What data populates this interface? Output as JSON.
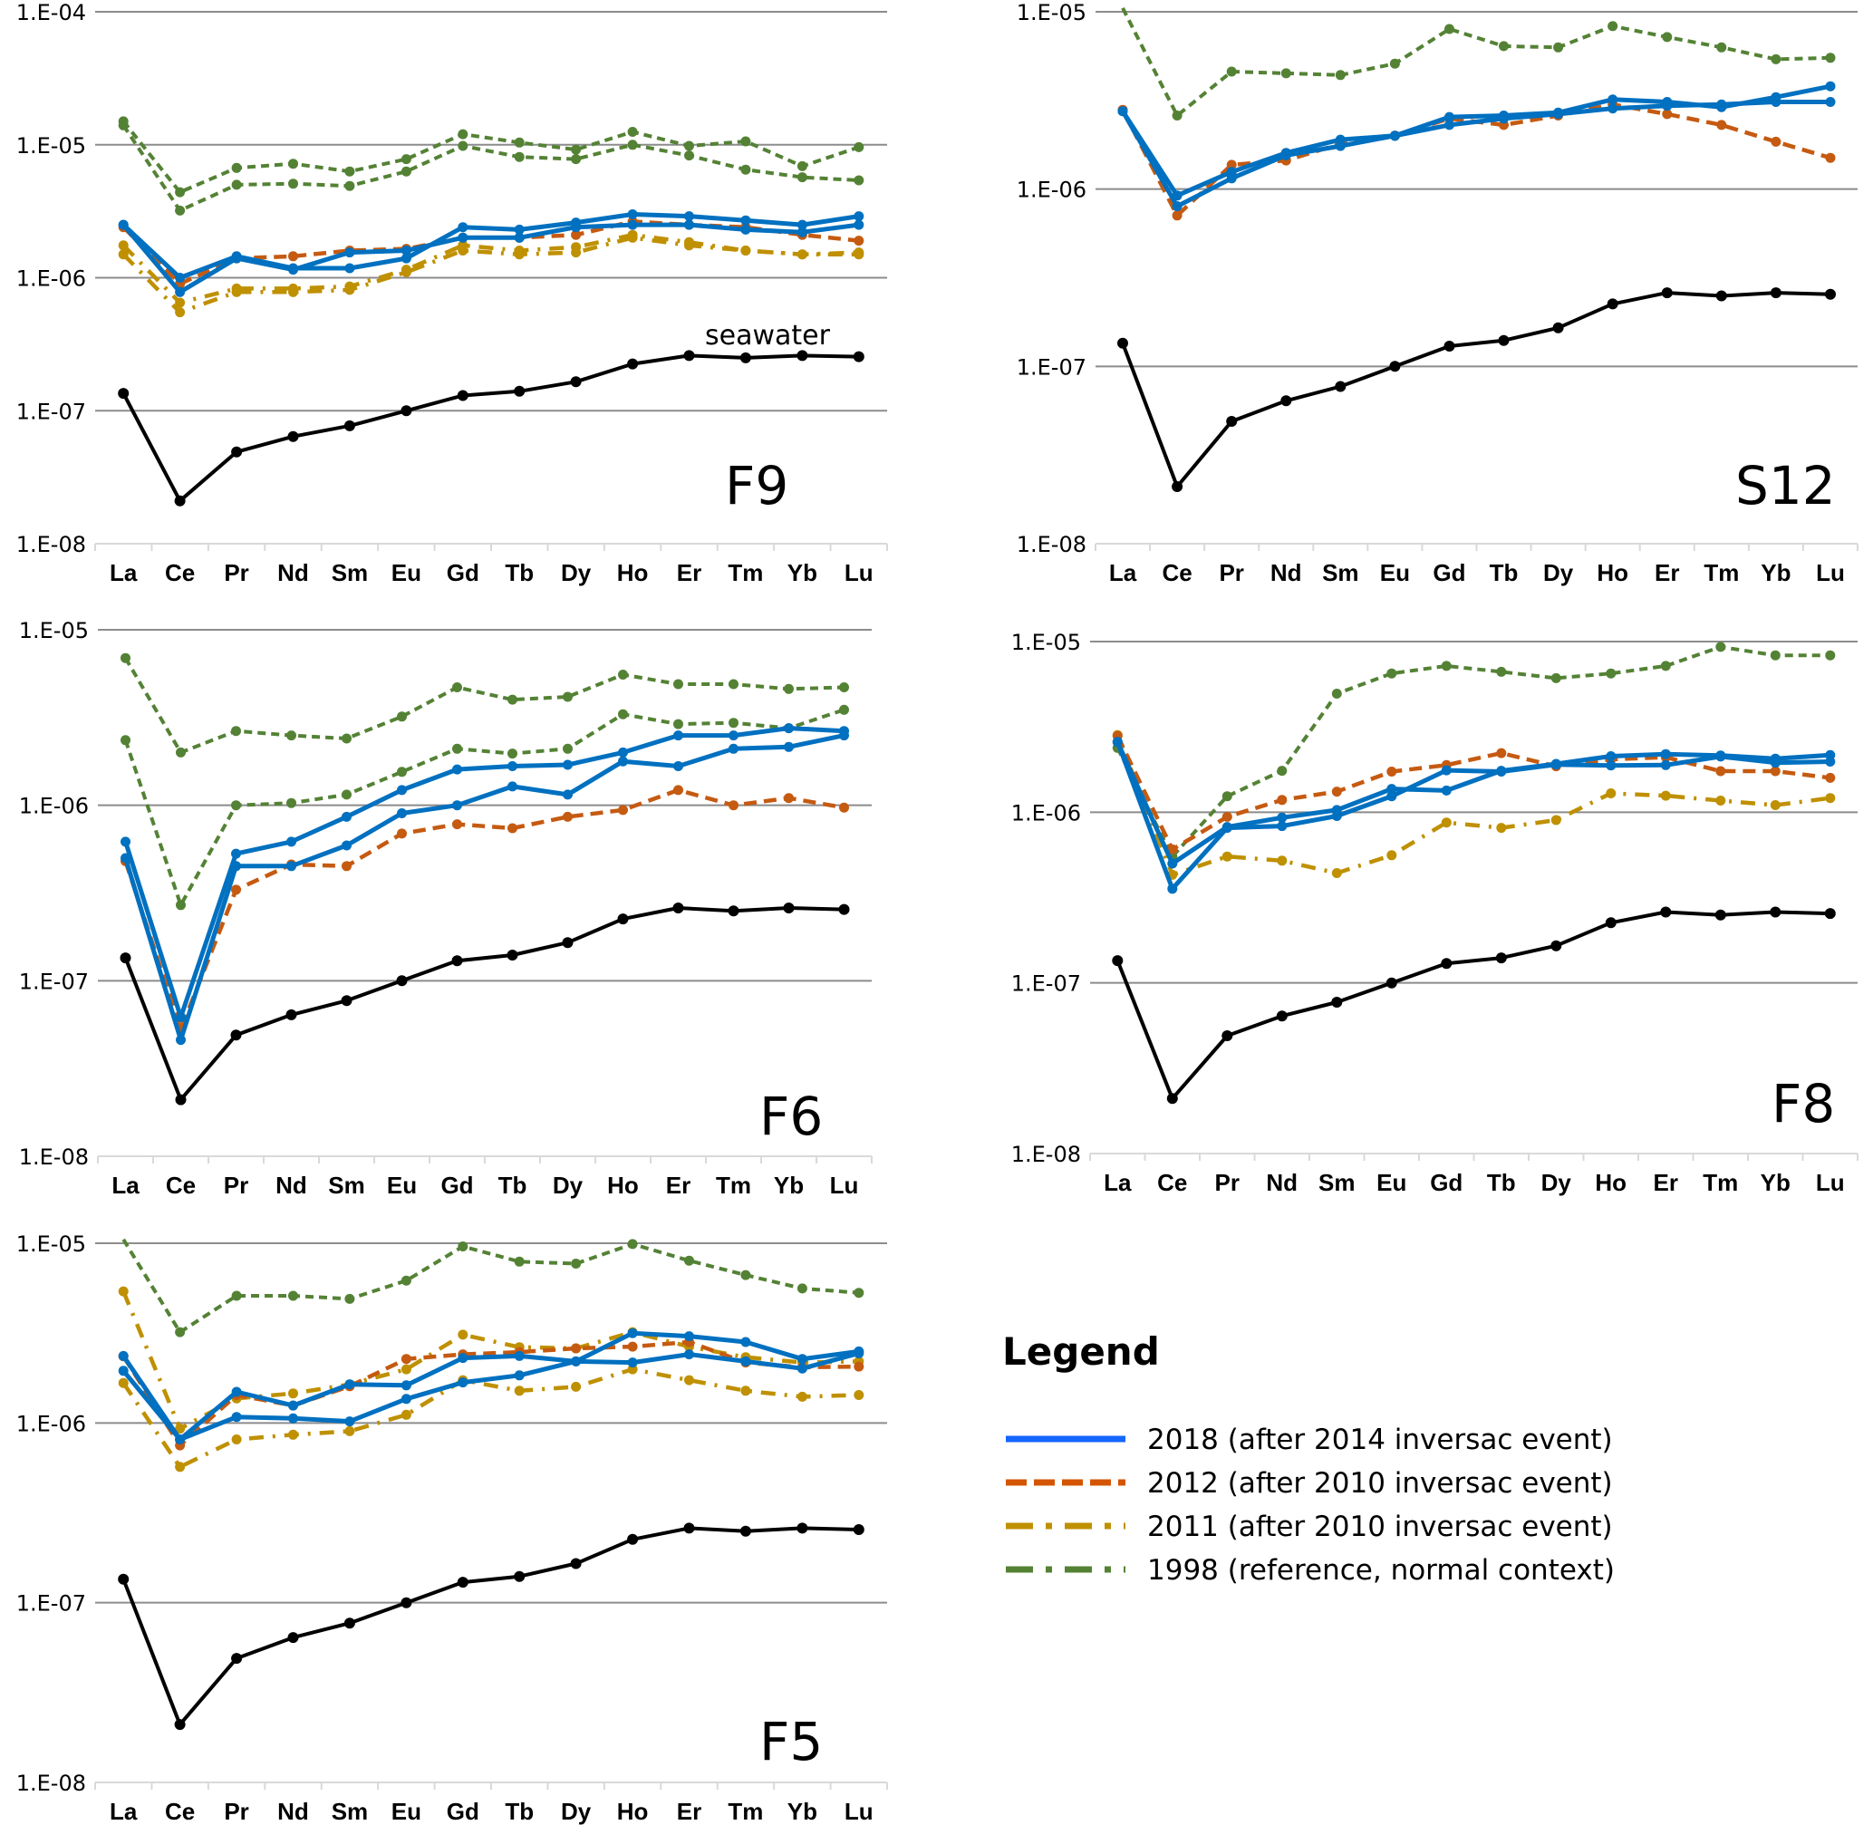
{
  "chart_data": {
    "type": "line",
    "yscale": "log",
    "categories": [
      "La",
      "Ce",
      "Pr",
      "Nd",
      "Sm",
      "Eu",
      "Gd",
      "Tb",
      "Dy",
      "Ho",
      "Er",
      "Tm",
      "Yb",
      "Lu"
    ],
    "series_styles": {
      "2018": {
        "color": "#0070c0",
        "dash": "solid"
      },
      "2012": {
        "color": "#c55a11",
        "dash": "dashed"
      },
      "2011": {
        "color": "#bf9000",
        "dash": "dash-dot"
      },
      "1998": {
        "color": "#548235",
        "dash": "short-dash"
      },
      "seawater": {
        "color": "#000000",
        "dash": "solid"
      }
    },
    "seawater": [
      1.35e-07,
      2.1e-08,
      4.9e-08,
      6.4e-08,
      7.7e-08,
      1e-07,
      1.3e-07,
      1.4e-07,
      1.65e-07,
      2.25e-07,
      2.6e-07,
      2.5e-07,
      2.6e-07,
      2.55e-07
    ],
    "panels": [
      {
        "id": "F9",
        "label": "F9",
        "annotation": "seawater",
        "yticks": [
          "1.E-04",
          "1.E-05",
          "1.E-06",
          "1.E-07",
          "1.E-08"
        ],
        "ylim": [
          1e-08,
          0.0001
        ],
        "series": [
          {
            "group": "1998",
            "values": [
              1.5e-05,
              4.4e-06,
              6.7e-06,
              7.2e-06,
              6.3e-06,
              7.8e-06,
              1.2e-05,
              1.04e-05,
              9.2e-06,
              1.25e-05,
              9.8e-06,
              1.06e-05,
              6.9e-06,
              9.6e-06
            ]
          },
          {
            "group": "1998",
            "values": [
              1.4e-05,
              3.2e-06,
              5e-06,
              5.1e-06,
              4.9e-06,
              6.3e-06,
              9.8e-06,
              8.1e-06,
              7.8e-06,
              1e-05,
              8.3e-06,
              6.5e-06,
              5.7e-06,
              5.4e-06
            ]
          },
          {
            "group": "2011",
            "values": [
              1.75e-06,
              6.5e-07,
              8.3e-07,
              8.3e-07,
              8.6e-07,
              1.15e-06,
              1.75e-06,
              1.6e-06,
              1.7e-06,
              2.1e-06,
              1.85e-06,
              1.6e-06,
              1.5e-06,
              1.55e-06
            ]
          },
          {
            "group": "2011",
            "values": [
              1.5e-06,
              5.5e-07,
              7.8e-07,
              7.8e-07,
              8.1e-07,
              1.1e-06,
              1.6e-06,
              1.5e-06,
              1.55e-06,
              2e-06,
              1.75e-06,
              1.6e-06,
              1.5e-06,
              1.5e-06
            ]
          },
          {
            "group": "2012",
            "values": [
              2.4e-06,
              9e-07,
              1.4e-06,
              1.45e-06,
              1.6e-06,
              1.65e-06,
              2e-06,
              2e-06,
              2.1e-06,
              2.65e-06,
              2.5e-06,
              2.4e-06,
              2.1e-06,
              1.9e-06
            ]
          },
          {
            "group": "2018",
            "values": [
              2.5e-06,
              1e-06,
              1.45e-06,
              1.18e-06,
              1.18e-06,
              1.4e-06,
              2.4e-06,
              2.3e-06,
              2.6e-06,
              3e-06,
              2.9e-06,
              2.7e-06,
              2.5e-06,
              2.9e-06
            ]
          },
          {
            "group": "2018",
            "values": [
              2.5e-06,
              7.8e-07,
              1.4e-06,
              1.15e-06,
              1.55e-06,
              1.6e-06,
              2e-06,
              2e-06,
              2.4e-06,
              2.5e-06,
              2.5e-06,
              2.3e-06,
              2.2e-06,
              2.5e-06
            ]
          },
          {
            "group": "seawater",
            "values": "seawater"
          }
        ]
      },
      {
        "id": "S12",
        "label": "S12",
        "yticks": [
          "1.E-05",
          "1.E-06",
          "1.E-07",
          "1.E-08"
        ],
        "ylim": [
          1e-08,
          1e-05
        ],
        "series": [
          {
            "group": "1998",
            "values": [
              1.05e-05,
              2.6e-06,
              4.6e-06,
              4.5e-06,
              4.4e-06,
              5.1e-06,
              8e-06,
              6.4e-06,
              6.3e-06,
              8.3e-06,
              7.2e-06,
              6.3e-06,
              5.4e-06,
              5.5e-06
            ]
          },
          {
            "group": "2012",
            "values": [
              2.8e-06,
              7.1e-07,
              1.37e-06,
              1.45e-06,
              1.8e-06,
              2e-06,
              2.5e-06,
              2.3e-06,
              2.6e-06,
              3e-06,
              2.65e-06,
              2.3e-06,
              1.85e-06,
              1.5e-06
            ]
          },
          {
            "group": "2018",
            "values": [
              2.75e-06,
              9.2e-07,
              1.25e-06,
              1.6e-06,
              1.9e-06,
              2e-06,
              2.55e-06,
              2.6e-06,
              2.7e-06,
              3.2e-06,
              3.1e-06,
              2.9e-06,
              3.3e-06,
              3.8e-06
            ]
          },
          {
            "group": "2018",
            "values": [
              2.75e-06,
              8e-07,
              1.15e-06,
              1.55e-06,
              1.75e-06,
              2e-06,
              2.3e-06,
              2.5e-06,
              2.65e-06,
              2.85e-06,
              2.95e-06,
              3e-06,
              3.1e-06,
              3.1e-06
            ]
          },
          {
            "group": "seawater",
            "values": "seawater"
          }
        ]
      },
      {
        "id": "F6",
        "label": "F6",
        "yticks": [
          "1.E-05",
          "1.E-06",
          "1.E-07",
          "1.E-08"
        ],
        "ylim": [
          1e-08,
          1e-05
        ],
        "series": [
          {
            "group": "1998",
            "values": [
              6.9e-06,
              2e-06,
              2.65e-06,
              2.5e-06,
              2.4e-06,
              3.2e-06,
              4.7e-06,
              4e-06,
              4.15e-06,
              5.55e-06,
              4.9e-06,
              4.9e-06,
              4.6e-06,
              4.7e-06
            ]
          },
          {
            "group": "1998",
            "values": [
              2.35e-06,
              2.7e-07,
              1e-06,
              1.03e-06,
              1.15e-06,
              1.55e-06,
              2.1e-06,
              1.97e-06,
              2.1e-06,
              3.3e-06,
              2.9e-06,
              2.95e-06,
              2.75e-06,
              3.5e-06
            ]
          },
          {
            "group": "2012",
            "values": [
              4.8e-07,
              5.3e-08,
              3.3e-07,
              4.6e-07,
              4.5e-07,
              6.9e-07,
              7.8e-07,
              7.4e-07,
              8.6e-07,
              9.4e-07,
              1.22e-06,
              1e-06,
              1.1e-06,
              9.7e-07
            ]
          },
          {
            "group": "2018",
            "values": [
              6.2e-07,
              6.2e-08,
              5.3e-07,
              6.2e-07,
              8.6e-07,
              1.22e-06,
              1.6e-06,
              1.67e-06,
              1.7e-06,
              2e-06,
              2.5e-06,
              2.5e-06,
              2.75e-06,
              2.65e-06
            ]
          },
          {
            "group": "2018",
            "values": [
              5e-07,
              4.6e-08,
              4.5e-07,
              4.5e-07,
              5.9e-07,
              9e-07,
              1e-06,
              1.28e-06,
              1.15e-06,
              1.78e-06,
              1.67e-06,
              2.1e-06,
              2.15e-06,
              2.5e-06
            ]
          },
          {
            "group": "seawater",
            "values": "seawater"
          }
        ]
      },
      {
        "id": "F8",
        "label": "F8",
        "yticks": [
          "1.E-05",
          "1.E-06",
          "1.E-07",
          "1.E-08"
        ],
        "ylim": [
          1e-08,
          1e-05
        ],
        "series": [
          {
            "group": "1998",
            "values": [
              2.38e-06,
              5.5e-07,
              1.24e-06,
              1.75e-06,
              4.95e-06,
              6.5e-06,
              7.2e-06,
              6.65e-06,
              6.1e-06,
              6.5e-06,
              7.2e-06,
              9.3e-06,
              8.3e-06,
              8.3e-06
            ]
          },
          {
            "group": "2011",
            "values": [
              2.83e-06,
              4.3e-07,
              5.5e-07,
              5.2e-07,
              4.4e-07,
              5.6e-07,
              8.7e-07,
              8.1e-07,
              9e-07,
              1.29e-06,
              1.25e-06,
              1.17e-06,
              1.1e-06,
              1.21e-06
            ]
          },
          {
            "group": "2012",
            "values": [
              2.8e-06,
              6.05e-07,
              9.4e-07,
              1.18e-06,
              1.32e-06,
              1.73e-06,
              1.89e-06,
              2.22e-06,
              1.86e-06,
              2.04e-06,
              2.1e-06,
              1.74e-06,
              1.74e-06,
              1.59e-06
            ]
          },
          {
            "group": "2018",
            "values": [
              2.58e-06,
              5e-07,
              8.2e-07,
              9.3e-07,
              1.03e-06,
              1.37e-06,
              1.34e-06,
              1.75e-06,
              1.92e-06,
              2.13e-06,
              2.19e-06,
              2.15e-06,
              2.06e-06,
              2.16e-06
            ]
          },
          {
            "group": "2018",
            "values": [
              2.58e-06,
              3.56e-07,
              8.1e-07,
              8.3e-07,
              9.5e-07,
              1.24e-06,
              1.76e-06,
              1.73e-06,
              1.9e-06,
              1.88e-06,
              1.89e-06,
              2.12e-06,
              1.95e-06,
              1.98e-06
            ]
          },
          {
            "group": "seawater",
            "values": "seawater"
          }
        ]
      },
      {
        "id": "F5",
        "label": "F5",
        "yticks": [
          "1.E-05",
          "1.E-06",
          "1.E-07",
          "1.E-08"
        ],
        "ylim": [
          1e-08,
          1e-05
        ],
        "series": [
          {
            "group": "1998",
            "values": [
              1.05e-05,
              3.2e-06,
              5.1e-06,
              5.1e-06,
              4.9e-06,
              6.2e-06,
              9.6e-06,
              7.9e-06,
              7.7e-06,
              9.9e-06,
              8e-06,
              6.65e-06,
              5.6e-06,
              5.3e-06
            ]
          },
          {
            "group": "2011",
            "values": [
              5.4e-06,
              9.3e-07,
              1.37e-06,
              1.46e-06,
              1.64e-06,
              1.99e-06,
              3.1e-06,
              2.64e-06,
              2.6e-06,
              3.2e-06,
              2.66e-06,
              2.32e-06,
              2.17e-06,
              2.2e-06
            ]
          },
          {
            "group": "2011",
            "values": [
              1.67e-06,
              5.7e-07,
              8.1e-07,
              8.6e-07,
              9e-07,
              1.11e-06,
              1.73e-06,
              1.51e-06,
              1.59e-06,
              1.99e-06,
              1.73e-06,
              1.51e-06,
              1.4e-06,
              1.43e-06
            ]
          },
          {
            "group": "2012",
            "values": [
              2.35e-06,
              7.5e-07,
              1.43e-06,
              1.25e-06,
              1.6e-06,
              2.27e-06,
              2.41e-06,
              2.48e-06,
              2.6e-06,
              2.66e-06,
              2.82e-06,
              2.17e-06,
              2.04e-06,
              2.06e-06
            ]
          },
          {
            "group": "2018",
            "values": [
              2.36e-06,
              8.1e-07,
              1.49e-06,
              1.25e-06,
              1.64e-06,
              1.62e-06,
              2.3e-06,
              2.36e-06,
              2.2e-06,
              3.16e-06,
              3.04e-06,
              2.82e-06,
              2.27e-06,
              2.5e-06
            ]
          },
          {
            "group": "2018",
            "values": [
              1.95e-06,
              8.1e-07,
              1.08e-06,
              1.06e-06,
              1.02e-06,
              1.36e-06,
              1.68e-06,
              1.84e-06,
              2.2e-06,
              2.17e-06,
              2.41e-06,
              2.2e-06,
              2.01e-06,
              2.44e-06
            ]
          },
          {
            "group": "seawater",
            "values": "seawater"
          }
        ]
      }
    ],
    "legend": {
      "title": "Legend",
      "placement": "bottom-right",
      "items": [
        {
          "group": "2018",
          "label": "2018 (after 2014 inversac event)"
        },
        {
          "group": "2012",
          "label": "2012 (after 2010 inversac event)"
        },
        {
          "group": "2011",
          "label": "2011 (after 2010 inversac event)"
        },
        {
          "group": "1998",
          "label": "1998 (reference, normal context)"
        }
      ]
    }
  }
}
